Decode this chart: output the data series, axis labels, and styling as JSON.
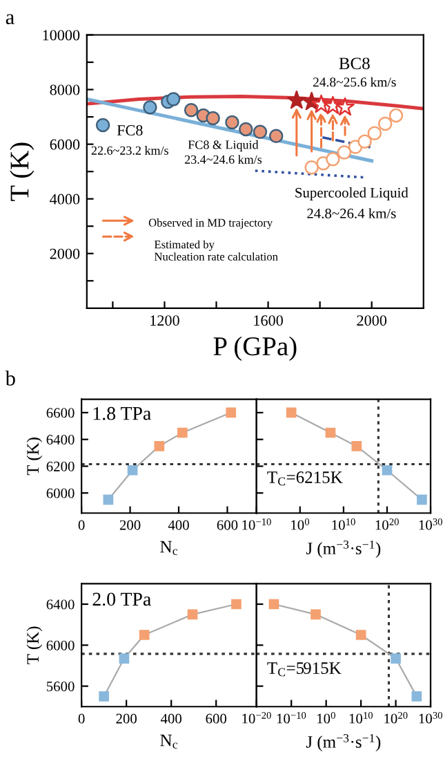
{
  "chart_data": [
    {
      "type": "scatter",
      "xlabel": "P (GPa)",
      "ylabel": "T (K)",
      "xlim": [
        900,
        2200
      ],
      "ylim": [
        0,
        10000
      ],
      "xticks": [
        {
          "value": 1000,
          "label": null
        },
        1200,
        {
          "value": 1400,
          "label": null
        },
        1600,
        {
          "value": 1800,
          "label": null
        },
        2000
      ],
      "yticks": [
        {
          "value": 1000,
          "label": null
        },
        2000,
        {
          "value": 3000,
          "label": null
        },
        4000,
        {
          "value": 5000,
          "label": null
        },
        6000,
        {
          "value": 7000,
          "label": null
        },
        8000,
        {
          "value": 9000,
          "label": null
        },
        10000
      ],
      "annotations": [
        "a",
        "BC8",
        "24.8~25.6 km/s",
        "FC8",
        "22.6~23.2 km/s",
        "FC8 & Liquid",
        "23.4~24.6 km/s",
        "Supercooled Liquid",
        "24.8~26.4 km/s",
        "Observed in MD trajectory",
        "Estimated by\nNucleation rate calculation"
      ],
      "series": [
        {
          "type": "line",
          "color": "#d9393e",
          "line_style": "solid",
          "x": [
            900,
            1100,
            1300,
            1500,
            1700,
            1900,
            2100,
            2200
          ],
          "values": [
            7480,
            7650,
            7730,
            7750,
            7700,
            7580,
            7400,
            7300
          ]
        },
        {
          "type": "line",
          "color": "#7ab0d8",
          "line_style": "solid",
          "x": [
            900,
            2000
          ],
          "values": [
            7650,
            5390
          ]
        },
        {
          "type": "line",
          "color": "#3050a0",
          "line_style": "dotted",
          "x": [
            1550,
            1980
          ],
          "values": [
            5030,
            4780
          ]
        },
        {
          "type": "line",
          "color": "#3050a0",
          "line_style": "dashed",
          "x": [
            1810,
            2000
          ],
          "values": [
            6250,
            5880
          ]
        },
        {
          "type": "scatter",
          "marker": "circle",
          "color": "#7ab0d8",
          "x": [
            962,
            1144,
            1213,
            1234
          ],
          "values": [
            6700,
            7350,
            7550,
            7650
          ]
        },
        {
          "type": "scatter",
          "marker": "circle",
          "color": "#e8967a",
          "x": [
            1303,
            1350,
            1387,
            1461,
            1514,
            1569,
            1631
          ],
          "values": [
            7250,
            7050,
            6950,
            6800,
            6550,
            6450,
            6300
          ]
        },
        {
          "type": "scatter",
          "marker": "circle",
          "color": "#f4a070",
          "x": [
            1768,
            1813,
            1850,
            1894,
            1937,
            1973,
            2011,
            2052,
            2094
          ],
          "values": [
            5150,
            5300,
            5450,
            5700,
            5900,
            6100,
            6400,
            6750,
            7050
          ]
        },
        {
          "type": "scatter",
          "marker": "star",
          "color": "#b22222",
          "x": [
            1710,
            1768
          ],
          "values": [
            7600,
            7550
          ]
        },
        {
          "type": "scatter",
          "marker": "star",
          "color": "#e03030",
          "x": [
            1805,
            1850,
            1897
          ],
          "values": [
            7450,
            7400,
            7350
          ]
        }
      ]
    },
    {
      "type": "line",
      "marker": "square",
      "xlabel": "N$_{c}$",
      "ylabel": "T (K)",
      "xlim": [
        0,
        720
      ],
      "ylim": [
        5850,
        6700
      ],
      "xticks": [
        0,
        200,
        400,
        600
      ],
      "yticks": [
        6000,
        6200,
        6400,
        6600
      ],
      "x": [
        110,
        210,
        320,
        415,
        615
      ],
      "series": [
        {
          "color": "#aaaaaa",
          "colors": [
            "#8ab8dc",
            "#8ab8dc",
            "#f4a070",
            "#f4a070",
            "#f4a070"
          ],
          "values": [
            5950,
            6170,
            6350,
            6450,
            6600
          ]
        }
      ],
      "ref_lines": [
        {
          "axis": "y",
          "value": 6215
        }
      ],
      "annotations": [
        "b",
        "1.8 TPa"
      ]
    },
    {
      "type": "line",
      "marker": "square",
      "log": "x",
      "tick_labels": "x",
      "xlabel": "J (m$^{−3}$·s$^{−1}$)",
      "xlim": [
        1e-10,
        1e+30
      ],
      "ylim": [
        5850,
        6700
      ],
      "xticks": [
        {
          "value": 1e-10,
          "label": "10$^{−10}$"
        },
        {
          "value": 1,
          "label": "10$^{0}$"
        },
        {
          "value": 10000000000.0,
          "label": "10$^{10}$"
        },
        {
          "value": 1e+20,
          "label": "10$^{20}$"
        },
        {
          "value": 1e+30,
          "label": "10$^{30}$"
        }
      ],
      "yticks": [
        6000,
        6200,
        6400,
        6600
      ],
      "x": [
        0.01,
        10000000.0,
        10000000000000.0,
        1e+20,
        1e+28
      ],
      "series": [
        {
          "color": "#aaaaaa",
          "colors": [
            "#f4a070",
            "#f4a070",
            "#f4a070",
            "#8ab8dc",
            "#8ab8dc"
          ],
          "values": [
            6600,
            6450,
            6350,
            6170,
            5950
          ]
        }
      ],
      "ref_lines": [
        {
          "axis": "y",
          "value": 6215
        },
        {
          "axis": "x",
          "value": 1e+18
        }
      ],
      "annotations": [
        "T$_{C}$=6215K"
      ]
    },
    {
      "type": "line",
      "marker": "square",
      "xlabel": "N$_{c}$",
      "ylabel": "T (K)",
      "xlim": [
        0,
        780
      ],
      "ylim": [
        5400,
        6600
      ],
      "xticks": [
        0,
        200,
        400,
        600
      ],
      "yticks": [
        5600,
        6000,
        6400
      ],
      "x": [
        100,
        190,
        280,
        495,
        690
      ],
      "series": [
        {
          "color": "#aaaaaa",
          "colors": [
            "#8ab8dc",
            "#8ab8dc",
            "#f4a070",
            "#f4a070",
            "#f4a070"
          ],
          "values": [
            5500,
            5870,
            6100,
            6300,
            6400
          ]
        }
      ],
      "ref_lines": [
        {
          "axis": "y",
          "value": 5915
        }
      ],
      "annotations": [
        "2.0 TPa"
      ]
    },
    {
      "type": "line",
      "marker": "square",
      "log": "x",
      "tick_labels": "x",
      "xlabel": "J (m$^{−3}$·s$^{−1}$)",
      "xlim": [
        1e-20,
        1e+30
      ],
      "ylim": [
        5400,
        6600
      ],
      "xticks": [
        {
          "value": 1e-20,
          "label": "10$^{−20}$"
        },
        {
          "value": 1e-10,
          "label": "10$^{−10}$"
        },
        {
          "value": 1,
          "label": "10$^{0}$"
        },
        {
          "value": 10000000000.0,
          "label": "10$^{10}$"
        },
        {
          "value": 1e+20,
          "label": "10$^{20}$"
        },
        {
          "value": 1e+30,
          "label": "10$^{30}$"
        }
      ],
      "yticks": [
        5600,
        6000,
        6400
      ],
      "x": [
        1e-15,
        0.001,
        10000000000.0,
        1e+20,
        1e+26
      ],
      "series": [
        {
          "color": "#aaaaaa",
          "colors": [
            "#f4a070",
            "#f4a070",
            "#f4a070",
            "#8ab8dc",
            "#8ab8dc"
          ],
          "values": [
            6400,
            6300,
            6100,
            5870,
            5500
          ]
        }
      ],
      "ref_lines": [
        {
          "axis": "y",
          "value": 5915
        },
        {
          "axis": "x",
          "value": 1e+18
        }
      ],
      "annotations": [
        "T$_{C}$=5915K"
      ]
    }
  ]
}
